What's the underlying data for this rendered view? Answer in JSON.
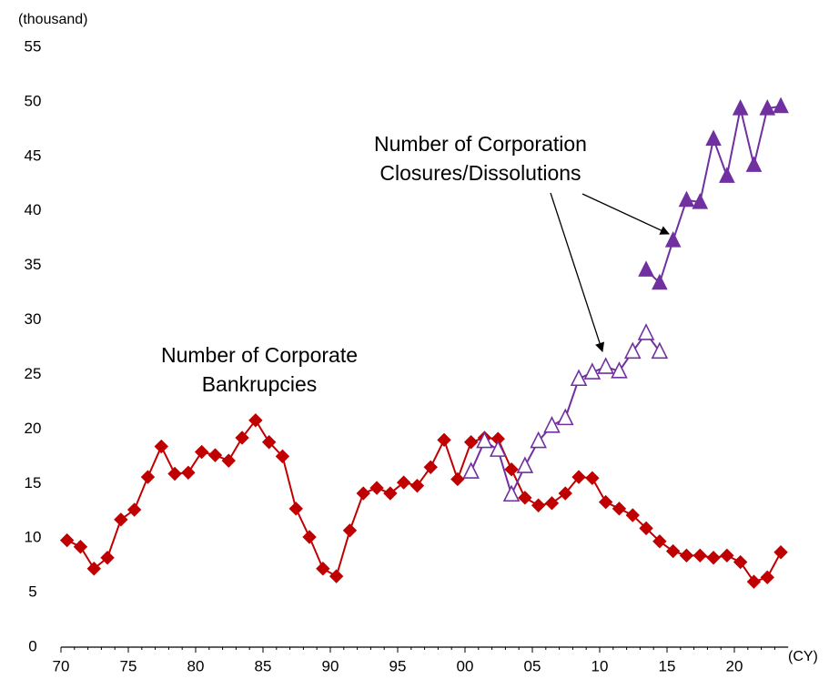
{
  "chart_data": {
    "type": "line",
    "y_unit_label": "(thousand)",
    "x_unit_label": "(CY)",
    "categories": [
      "70",
      null,
      null,
      null,
      null,
      "75",
      null,
      null,
      null,
      null,
      "80",
      null,
      null,
      null,
      null,
      "85",
      null,
      null,
      null,
      null,
      "90",
      null,
      null,
      null,
      null,
      "95",
      null,
      null,
      null,
      null,
      "00",
      null,
      null,
      null,
      null,
      "05",
      null,
      null,
      null,
      null,
      "10",
      null,
      null,
      null,
      null,
      "15",
      null,
      null,
      null,
      null,
      "20",
      null,
      null,
      null
    ],
    "series": [
      {
        "color": "#c00000",
        "marker": "diamond",
        "values": [
          9.8,
          9.2,
          7.2,
          8.2,
          11.7,
          12.6,
          15.6,
          18.4,
          15.9,
          16.0,
          17.9,
          17.6,
          17.1,
          19.2,
          20.8,
          18.8,
          17.5,
          12.7,
          10.1,
          7.2,
          6.5,
          10.7,
          14.1,
          14.6,
          14.1,
          15.1,
          14.8,
          16.5,
          19.0,
          15.4,
          18.8,
          19.2,
          19.1,
          16.3,
          13.7,
          13.0,
          13.2,
          14.1,
          15.6,
          15.5,
          13.3,
          12.7,
          12.1,
          10.9,
          9.7,
          8.8,
          8.4,
          8.4,
          8.2,
          8.4,
          7.8,
          6.0,
          6.4,
          8.7
        ]
      },
      {
        "color": "#7030a0",
        "marker": "open-triangle",
        "values": [
          null,
          null,
          null,
          null,
          null,
          null,
          null,
          null,
          null,
          null,
          null,
          null,
          null,
          null,
          null,
          null,
          null,
          null,
          null,
          null,
          null,
          null,
          null,
          null,
          null,
          null,
          null,
          null,
          null,
          null,
          16.1,
          18.9,
          18.1,
          14.0,
          16.6,
          18.9,
          20.3,
          21.0,
          24.6,
          25.2,
          25.7,
          25.3,
          27.1,
          28.8,
          27.1,
          null,
          null,
          null,
          null,
          null,
          null,
          null,
          null,
          null
        ]
      },
      {
        "color": "#7030a0",
        "marker": "filled-triangle",
        "values": [
          null,
          null,
          null,
          null,
          null,
          null,
          null,
          null,
          null,
          null,
          null,
          null,
          null,
          null,
          null,
          null,
          null,
          null,
          null,
          null,
          null,
          null,
          null,
          null,
          null,
          null,
          null,
          null,
          null,
          null,
          null,
          null,
          null,
          null,
          null,
          null,
          null,
          null,
          null,
          null,
          null,
          null,
          null,
          34.6,
          33.4,
          37.3,
          41.0,
          40.8,
          46.6,
          43.2,
          49.4,
          44.2,
          49.4,
          49.6
        ]
      }
    ],
    "annotations": [
      {
        "lines": [
          "Number of Corporate",
          "Bankrupcies"
        ]
      },
      {
        "lines": [
          "Number of Corporation",
          "Closures/Dissolutions"
        ]
      }
    ],
    "ylim": [
      0,
      55
    ],
    "yticks": [
      0,
      5,
      10,
      15,
      20,
      25,
      30,
      35,
      40,
      45,
      50,
      55
    ],
    "grid": false
  }
}
